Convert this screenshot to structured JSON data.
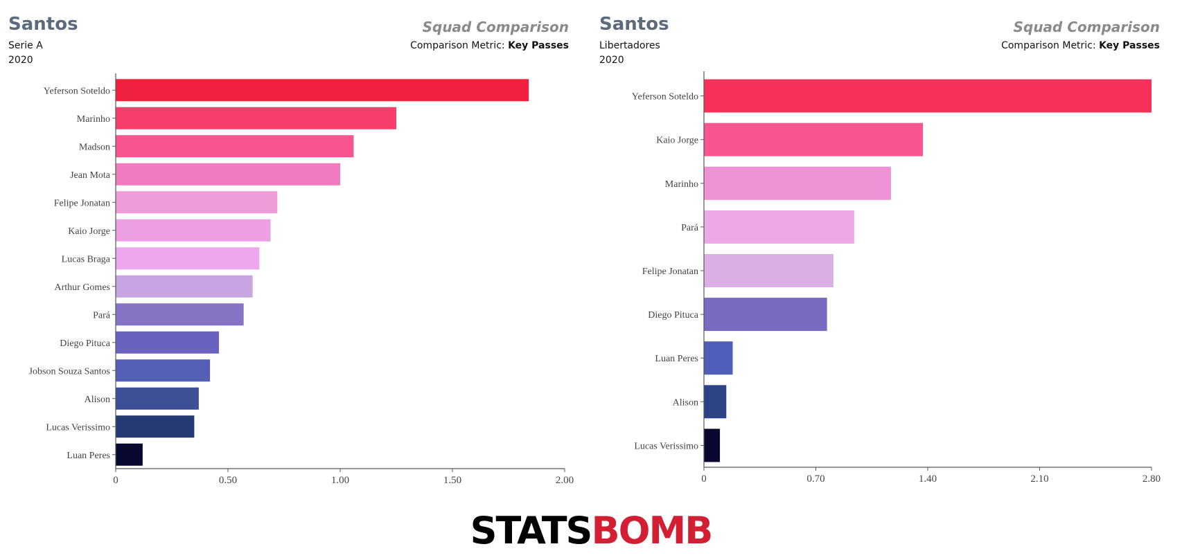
{
  "chart_data": [
    {
      "type": "bar",
      "orientation": "horizontal",
      "header": {
        "team": "Santos",
        "competition": "Serie A",
        "season": "2020",
        "heading": "Squad Comparison",
        "metric_prefix": "Comparison Metric: ",
        "metric": "Key Passes"
      },
      "categories": [
        "Yeferson Soteldo",
        "Marinho",
        "Madson",
        "Jean Mota",
        "Felipe Jonatan",
        "Kaio Jorge",
        "Lucas Braga",
        "Arthur Gomes",
        "Pará",
        "Diego Pituca",
        "Jobson Souza Santos",
        "Alison",
        "Lucas Verissimo",
        "Luan Peres"
      ],
      "values": [
        1.84,
        1.25,
        1.06,
        1.0,
        0.72,
        0.69,
        0.64,
        0.61,
        0.57,
        0.46,
        0.42,
        0.37,
        0.35,
        0.12
      ],
      "colors": [
        "#f0203f",
        "#f73d6b",
        "#f75490",
        "#f07bbf",
        "#ee9dd8",
        "#ed9fe3",
        "#eca7ee",
        "#c9a4e2",
        "#8573c3",
        "#6a62bf",
        "#5460b5",
        "#3d4f97",
        "#253a73",
        "#08082e"
      ],
      "xlim": [
        0,
        2.0
      ],
      "ticks": [
        0,
        0.5,
        1.0,
        1.5,
        2.0
      ],
      "tick_labels": [
        "0",
        "0.50",
        "1.00",
        "1.50",
        "2.00"
      ]
    },
    {
      "type": "bar",
      "orientation": "horizontal",
      "header": {
        "team": "Santos",
        "competition": "Libertadores",
        "season": "2020",
        "heading": "Squad Comparison",
        "metric_prefix": "Comparison Metric: ",
        "metric": "Key Passes"
      },
      "categories": [
        "Yeferson Soteldo",
        "Kaio Jorge",
        "Marinho",
        "Pará",
        "Felipe Jonatan",
        "Diego Pituca",
        "Luan Peres",
        "Alison",
        "Lucas Verissimo"
      ],
      "values": [
        2.8,
        1.37,
        1.17,
        0.94,
        0.81,
        0.77,
        0.18,
        0.14,
        0.1
      ],
      "colors": [
        "#f73059",
        "#f75490",
        "#ee91d5",
        "#eca7e6",
        "#dbafe6",
        "#776ac1",
        "#4f5eb8",
        "#2c4385",
        "#08082e"
      ],
      "xlim": [
        0,
        2.8
      ],
      "ticks": [
        0,
        0.7,
        1.4,
        2.1,
        2.8
      ],
      "tick_labels": [
        "0",
        "0.70",
        "1.40",
        "2.10",
        "2.80"
      ]
    }
  ],
  "logo": {
    "part1": "STATS",
    "part2": "BOMB"
  }
}
